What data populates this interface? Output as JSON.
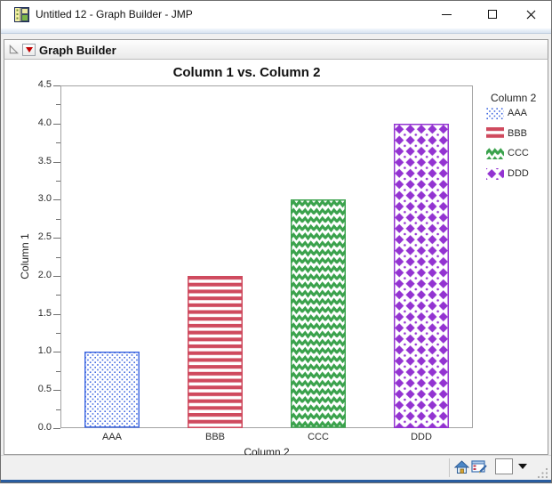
{
  "window": {
    "title": "Untitled 12 - Graph Builder - JMP",
    "controls": [
      "minimize",
      "maximize",
      "close"
    ]
  },
  "outline_header": {
    "title": "Graph Builder"
  },
  "chart_data": {
    "type": "bar",
    "title": "Column 1 vs. Column 2",
    "categories": [
      "AAA",
      "BBB",
      "CCC",
      "DDD"
    ],
    "values": [
      1,
      2,
      3,
      4
    ],
    "xlabel": "Column 2",
    "ylabel": "Column 1",
    "ylim": [
      0,
      4.5
    ],
    "ytick_step": 0.5,
    "ytick_minor_step": 0.25,
    "ytick_labels": [
      "0.0",
      "0.5",
      "1.0",
      "1.5",
      "2.0",
      "2.5",
      "3.0",
      "3.5",
      "4.0",
      "4.5"
    ],
    "grid": false,
    "legend_position": "right",
    "series_styles": [
      {
        "category": "AAA",
        "color": "#4169e1",
        "pattern": "dots"
      },
      {
        "category": "BBB",
        "color": "#cf4a5e",
        "pattern": "horizontal-stripes"
      },
      {
        "category": "CCC",
        "color": "#3aa24c",
        "pattern": "zigzag"
      },
      {
        "category": "DDD",
        "color": "#9333d1",
        "pattern": "diamonds"
      }
    ]
  },
  "legend": {
    "title": "Column 2",
    "items": [
      "AAA",
      "BBB",
      "CCC",
      "DDD"
    ]
  },
  "statusbar": {
    "icons": [
      "home-icon",
      "data-table-icon",
      "color-selector-box",
      "dropdown-caret",
      "resize-grip"
    ]
  }
}
